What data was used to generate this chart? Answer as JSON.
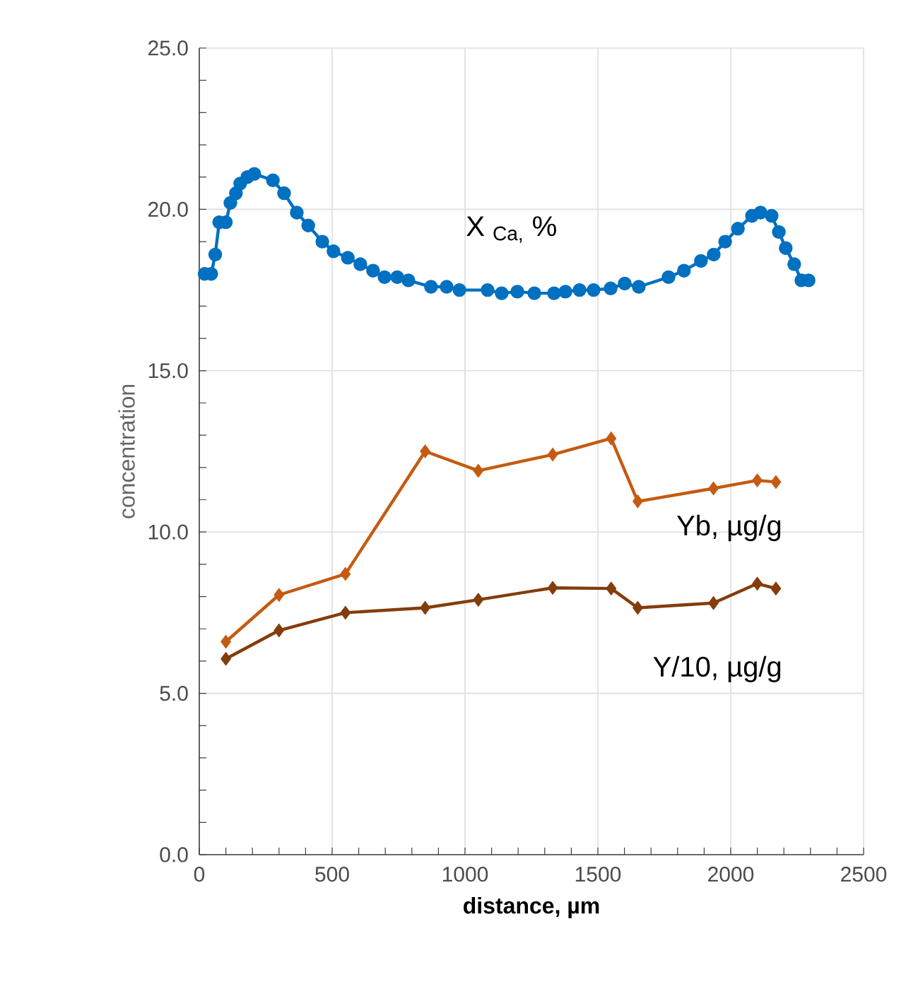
{
  "chart_data": {
    "type": "line",
    "xlabel": "distance, µm",
    "ylabel": "concentration",
    "xlim": [
      0,
      2500
    ],
    "xticks": [
      0,
      500,
      1000,
      1500,
      2000,
      2500
    ],
    "ylim": [
      0,
      25
    ],
    "yticks": [
      {
        "value": 0,
        "label": "0.0"
      },
      {
        "value": 5,
        "label": "5.0"
      },
      {
        "value": 10,
        "label": "10.0"
      },
      {
        "value": 15,
        "label": "15.0"
      },
      {
        "value": 20,
        "label": "20.0"
      },
      {
        "value": 25,
        "label": "25.0"
      }
    ],
    "grid": true,
    "legend": false,
    "series": [
      {
        "name": "X $_{Ca,}$ %",
        "color": "#0070c0",
        "marker": "circle",
        "x": [
          20,
          45,
          60,
          75,
          100,
          117,
          138,
          154,
          181,
          207,
          277,
          319,
          367,
          410,
          463,
          505,
          559,
          606,
          654,
          697,
          745,
          787,
          872,
          931,
          979,
          1085,
          1138,
          1197,
          1261,
          1335,
          1378,
          1431,
          1484,
          1548,
          1601,
          1654,
          1766,
          1824,
          1888,
          1936,
          1979,
          2027,
          2080,
          2112,
          2154,
          2181,
          2207,
          2239,
          2266,
          2293
        ],
        "values": [
          18.0,
          18.0,
          18.6,
          19.6,
          19.6,
          20.2,
          20.5,
          20.8,
          21.0,
          21.1,
          20.9,
          20.5,
          19.9,
          19.5,
          19.0,
          18.7,
          18.5,
          18.3,
          18.1,
          17.9,
          17.9,
          17.8,
          17.6,
          17.6,
          17.5,
          17.5,
          17.4,
          17.45,
          17.4,
          17.4,
          17.45,
          17.5,
          17.5,
          17.55,
          17.7,
          17.6,
          17.9,
          18.1,
          18.4,
          18.6,
          19.0,
          19.4,
          19.8,
          19.9,
          19.8,
          19.3,
          18.8,
          18.3,
          17.8,
          17.8
        ]
      },
      {
        "name": "Yb, µg/g",
        "color": "#c55a11",
        "marker": "diamond",
        "x": [
          100,
          300,
          550,
          850,
          1050,
          1330,
          1550,
          1650,
          1935,
          2100,
          2170
        ],
        "values": [
          6.6,
          8.05,
          8.7,
          12.5,
          11.9,
          12.4,
          12.9,
          10.95,
          11.35,
          11.6,
          11.55
        ]
      },
      {
        "name": "Y/10, µg/g",
        "color": "#843c0c",
        "marker": "diamond",
        "x": [
          100,
          300,
          550,
          850,
          1050,
          1330,
          1550,
          1650,
          1935,
          2100,
          2170
        ],
        "values": [
          6.07,
          6.95,
          7.5,
          7.65,
          7.9,
          8.27,
          8.25,
          7.65,
          7.8,
          8.4,
          8.25
        ]
      }
    ]
  }
}
